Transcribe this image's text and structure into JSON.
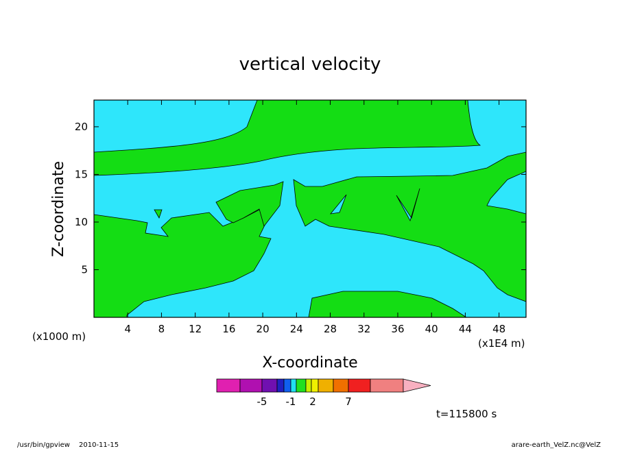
{
  "chart_data": {
    "type": "contour",
    "title": "vertical velocity",
    "x_label": "X-coordinate",
    "y_label": "Z-coordinate",
    "x_unit": "(x1E4 m)",
    "y_unit": "(x1000 m)",
    "xlim": [
      0,
      51.2
    ],
    "xticks": [
      4,
      8,
      12,
      16,
      20,
      24,
      28,
      32,
      36,
      40,
      44,
      48
    ],
    "ylim": [
      0,
      22.8
    ],
    "yticks": [
      5,
      10,
      15,
      20
    ],
    "fill_colors": [
      "#2ee6fb",
      "#14dd14"
    ],
    "colorbar": {
      "colors": [
        "#e020b0",
        "#b010b0",
        "#7010b0",
        "#2020c0",
        "#1060f0",
        "#20e0f0",
        "#20e020",
        "#c8f000",
        "#f0f000",
        "#f0b000",
        "#f07000",
        "#f02020",
        "#f08080",
        "#f8b0c0"
      ],
      "ticks": [
        -5,
        -1,
        2,
        7
      ]
    },
    "time_label": "t=115800 s",
    "footer_program": "/usr/bin/gpview",
    "footer_date": "2010-11-15",
    "footer_source": "arare-earth_VelZ.nc@VelZ"
  }
}
